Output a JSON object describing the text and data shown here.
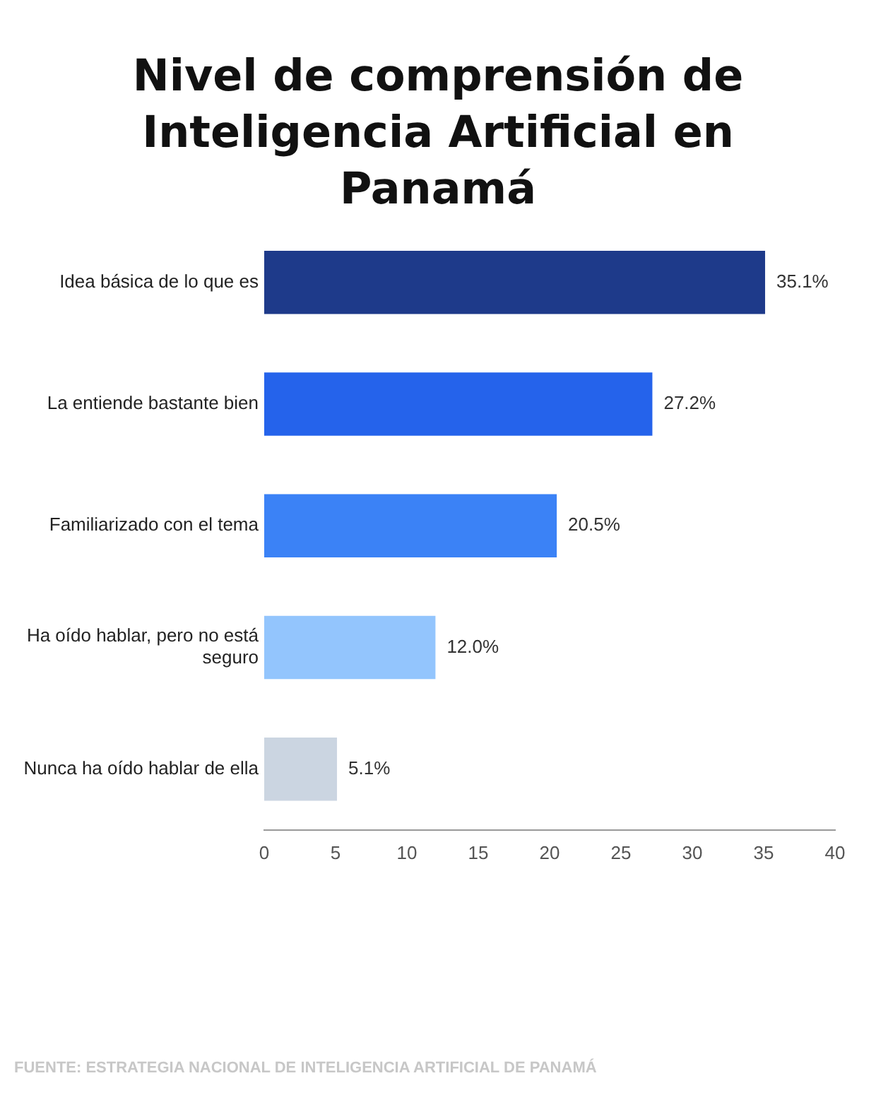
{
  "chart_data": {
    "type": "bar",
    "orientation": "horizontal",
    "title": "Nivel de comprensión de Inteligencia Artificial en Panamá",
    "categories": [
      "Idea básica de lo que es",
      "La entiende bastante bien",
      "Familiarizado con el tema",
      "Ha oído hablar, pero no está seguro",
      "Nunca ha oído hablar de ella"
    ],
    "values": [
      35.1,
      27.2,
      20.5,
      12.0,
      5.1
    ],
    "colors": [
      "#1e3a8a",
      "#2563eb",
      "#3b82f6",
      "#93c5fd",
      "#cbd5e1"
    ],
    "value_labels": [
      "35.1%",
      "27.2%",
      "20.5%",
      "12.0%",
      "5.1%"
    ],
    "xlim": [
      0,
      40
    ],
    "xticks": [
      0,
      5,
      10,
      15,
      20,
      25,
      30,
      35,
      40
    ],
    "grid": false,
    "legend": false,
    "annotations": [
      "FUENTE: ESTRATEGIA NACIONAL DE INTELIGENCIA ARTIFICIAL DE PANAMÁ"
    ]
  }
}
